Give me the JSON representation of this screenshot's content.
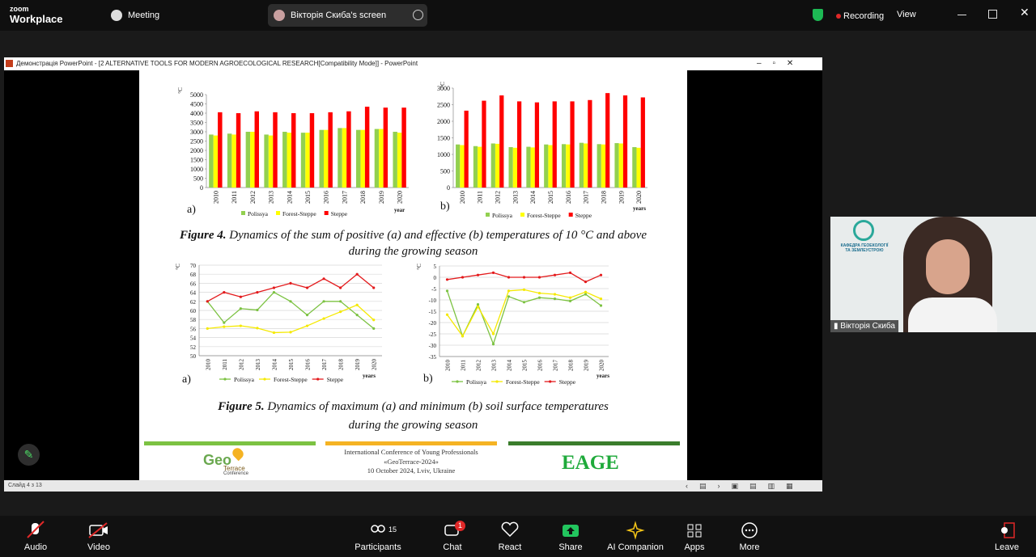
{
  "zoom": {
    "brand": "zoom",
    "product": "Workplace",
    "meeting": "Meeting",
    "share_label": "Вікторія Скиба's screen",
    "recording": "Recording",
    "view": "View"
  },
  "window": {
    "title": "Демонстрація PowerPoint - [2 ALTERNATIVE TOOLS FOR MODERN AGROECOLOGICAL RESEARCH[Compatibility Mode]] - PowerPoint",
    "status": "Слайд 4 з 13"
  },
  "slide": {
    "figure4": {
      "label": "Figure 4.",
      "line1": "Dynamics of the sum of positive (a) and effective (b) temperatures of 10 °C and above",
      "line2": "during the growing season"
    },
    "figure5": {
      "label": "Figure 5.",
      "line1": "Dynamics of maximum (a) and minimum (b) soil surface temperatures",
      "line2": "during the growing season"
    },
    "footer": {
      "logo_geo": "Geo",
      "logo_terrace": "Terrace",
      "logo_conference": "Conference",
      "conference_lines": [
        "International Conference of Young Professionals",
        "«GeoTerrace-2024»",
        "10 October 2024, Lviv, Ukraine"
      ],
      "eage": "EAGE"
    }
  },
  "chart_data": [
    {
      "type": "bar",
      "panel": "a)",
      "y_label": "°C",
      "x_label": "year",
      "categories": [
        "2010",
        "2011",
        "2012",
        "2013",
        "2014",
        "2015",
        "2016",
        "2017",
        "2018",
        "2019",
        "2020"
      ],
      "ylim": [
        0,
        5000
      ],
      "yticks": [
        0,
        500,
        1000,
        1500,
        2000,
        2500,
        3000,
        3500,
        4000,
        4500,
        5000
      ],
      "grid": false,
      "series": [
        {
          "name": "Polissya",
          "color": "#92d050",
          "values": [
            2850,
            2900,
            3000,
            2850,
            3000,
            2950,
            3100,
            3200,
            3100,
            3150,
            3000
          ]
        },
        {
          "name": "Forest-Steppe",
          "color": "#ffff00",
          "values": [
            2800,
            2850,
            3000,
            2800,
            2950,
            2950,
            3100,
            3200,
            3100,
            3150,
            2950
          ]
        },
        {
          "name": "Steppe",
          "color": "#ff0000",
          "values": [
            4050,
            4000,
            4100,
            4050,
            4000,
            4000,
            4050,
            4100,
            4350,
            4300,
            4300
          ]
        }
      ]
    },
    {
      "type": "bar",
      "panel": "b)",
      "y_label": "°C",
      "x_label": "years",
      "categories": [
        "2010",
        "2011",
        "2012",
        "2013",
        "2014",
        "2015",
        "2016",
        "2017",
        "2018",
        "2019",
        "2020"
      ],
      "ylim": [
        0,
        3000
      ],
      "yticks": [
        0,
        500,
        1000,
        1500,
        2000,
        2500,
        3000
      ],
      "grid": false,
      "series": [
        {
          "name": "Polissya",
          "color": "#92d050",
          "values": [
            1300,
            1250,
            1330,
            1220,
            1230,
            1300,
            1310,
            1350,
            1310,
            1340,
            1220
          ]
        },
        {
          "name": "Forest-Steppe",
          "color": "#ffff00",
          "values": [
            1280,
            1230,
            1320,
            1200,
            1210,
            1280,
            1300,
            1330,
            1300,
            1330,
            1200
          ]
        },
        {
          "name": "Steppe",
          "color": "#ff0000",
          "values": [
            2320,
            2620,
            2780,
            2600,
            2570,
            2600,
            2600,
            2640,
            2850,
            2780,
            2720
          ]
        }
      ]
    },
    {
      "type": "line",
      "panel": "a)",
      "y_label": "°C",
      "x_label": "years",
      "categories": [
        "2010",
        "2011",
        "2012",
        "2013",
        "2014",
        "2015",
        "2016",
        "2017",
        "2018",
        "2019",
        "2020"
      ],
      "ylim": [
        50,
        70
      ],
      "yticks": [
        50,
        52,
        54,
        56,
        58,
        60,
        62,
        64,
        66,
        68,
        70
      ],
      "grid": true,
      "series": [
        {
          "name": "Polissya",
          "color": "#7cc242",
          "values": [
            62,
            57.3,
            60.4,
            60.1,
            64,
            62,
            59,
            62,
            62,
            59,
            56
          ]
        },
        {
          "name": "Forest-Steppe",
          "color": "#f5e900",
          "values": [
            56,
            56.4,
            56.6,
            56.1,
            55.1,
            55.2,
            56.6,
            58.2,
            59.7,
            61.2,
            57.9
          ]
        },
        {
          "name": "Steppe",
          "color": "#e31a1c",
          "values": [
            62,
            64,
            63,
            64,
            65,
            66,
            65,
            67,
            65,
            68,
            65
          ]
        }
      ]
    },
    {
      "type": "line",
      "panel": "b)",
      "y_label": "°C",
      "x_label": "years",
      "categories": [
        "2010",
        "2011",
        "2012",
        "2013",
        "2014",
        "2015",
        "2016",
        "2017",
        "2018",
        "2019",
        "2020"
      ],
      "ylim": [
        -35,
        5
      ],
      "yticks": [
        -35,
        -30,
        -25,
        -20,
        -15,
        -10,
        -5,
        0,
        5
      ],
      "grid": true,
      "series": [
        {
          "name": "Polissya",
          "color": "#7cc242",
          "values": [
            -6,
            -26,
            -12,
            -29.5,
            -8.5,
            -11,
            -9,
            -9.5,
            -10.5,
            -7.5,
            -12.5
          ]
        },
        {
          "name": "Forest-Steppe",
          "color": "#f5e900",
          "values": [
            -16.5,
            -26,
            -13,
            -25,
            -6,
            -5.5,
            -7,
            -7.5,
            -9,
            -6.5,
            -9.5
          ]
        },
        {
          "name": "Steppe",
          "color": "#e31a1c",
          "values": [
            -1,
            0,
            1,
            2,
            0,
            0,
            0,
            1,
            2,
            -2,
            1
          ]
        }
      ]
    }
  ],
  "video": {
    "logo_text": "КАФЕДРА ГЕОЕКОЛОГІЇ ТА ЗЕМЛЕУСТРОЮ",
    "name": "Вікторія Скиба"
  },
  "toolbar": {
    "audio": "Audio",
    "video": "Video",
    "participants": "Participants",
    "participants_count": "15",
    "chat": "Chat",
    "chat_badge": "1",
    "react": "React",
    "share": "Share",
    "ai_companion": "AI Companion",
    "apps": "Apps",
    "more": "More",
    "leave": "Leave"
  }
}
